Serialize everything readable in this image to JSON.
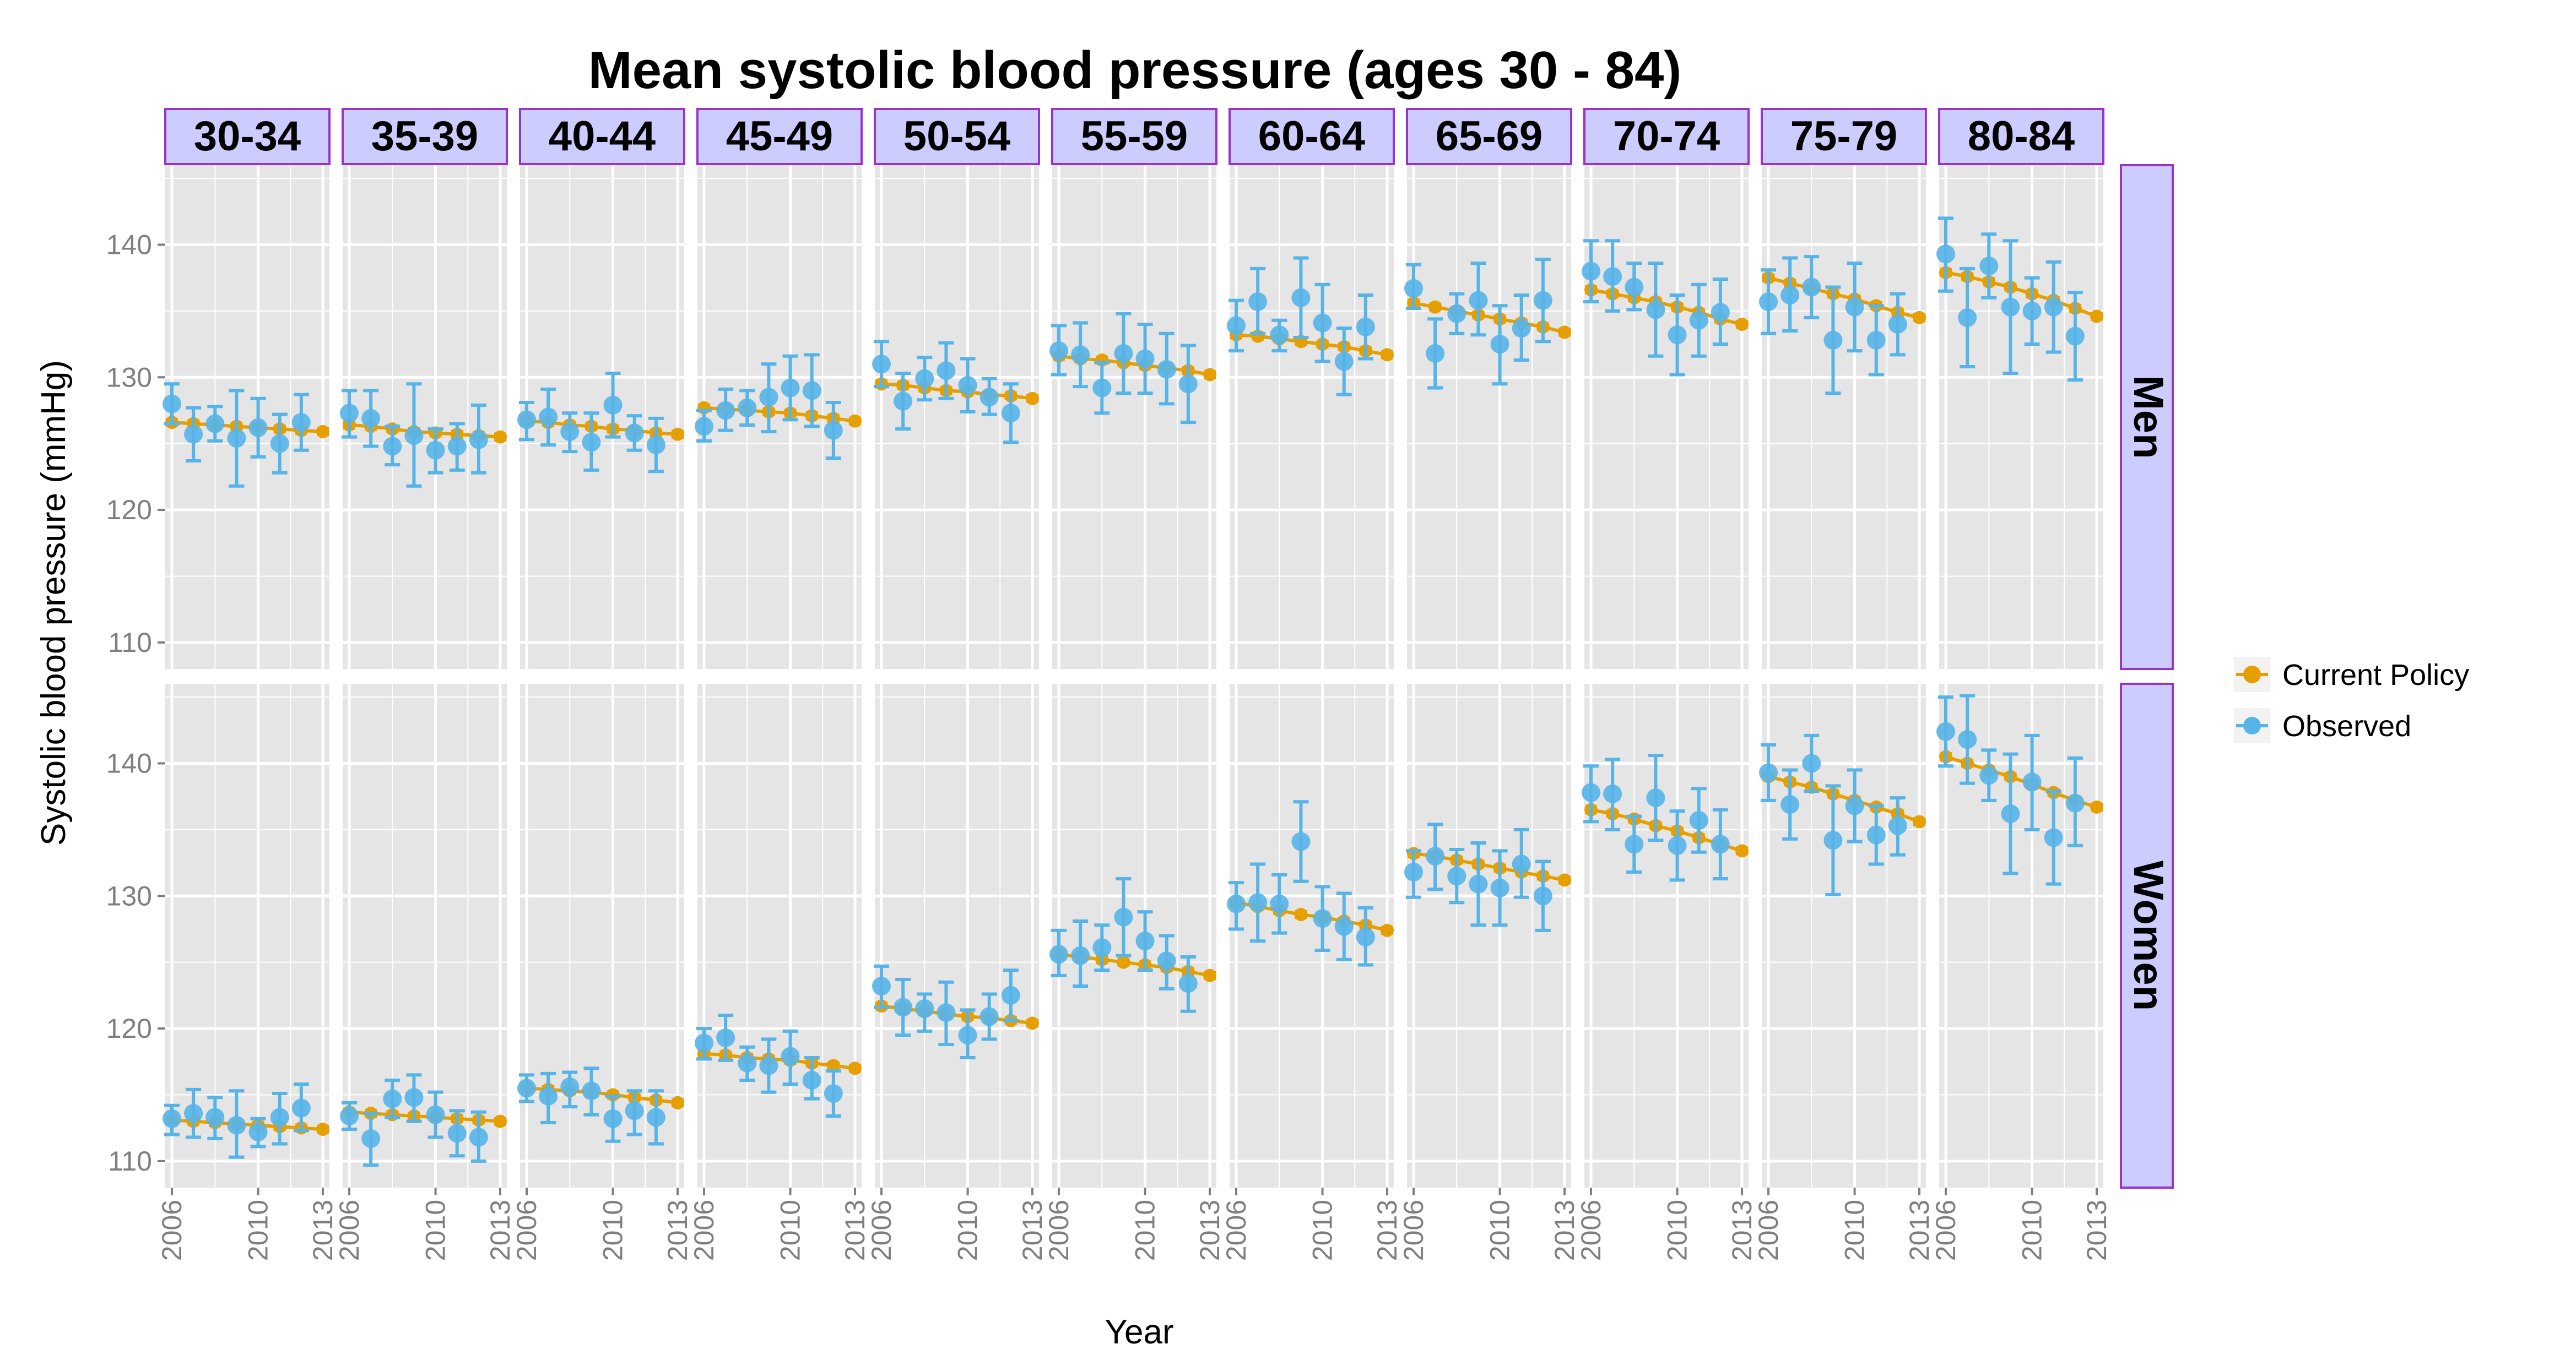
{
  "colors": {
    "policy": "#E69F00",
    "observed": "#56B4E9",
    "panel_bg": "#E5E5E5",
    "grid": "#FFFFFF",
    "strip_fill": "#CCCCFF",
    "strip_border": "#9933CC"
  },
  "chart_data": {
    "type": "scatter",
    "title": "Mean systolic blood pressure (ages 30 - 84)",
    "xlabel": "Year",
    "ylabel": "Systolic blood pressure (mmHg)",
    "xlim": [
      2006,
      2013
    ],
    "ylim": [
      108,
      146
    ],
    "x_ticks": [
      2006,
      2010,
      2013
    ],
    "x_tick_labels": [
      "2006",
      "2010",
      "2013"
    ],
    "y_ticks": [
      110,
      120,
      130,
      140
    ],
    "y_tick_labels": [
      "110",
      "120",
      "130",
      "140"
    ],
    "grid": true,
    "legend_position": "right",
    "legend": [
      {
        "name": "Current Policy",
        "color_key": "policy"
      },
      {
        "name": "Observed",
        "color_key": "observed"
      }
    ],
    "age_groups": [
      "30-34",
      "35-39",
      "40-44",
      "45-49",
      "50-54",
      "55-59",
      "60-64",
      "65-69",
      "70-74",
      "75-79",
      "80-84"
    ],
    "sexes": [
      "Men",
      "Women"
    ],
    "years": [
      2006,
      2007,
      2008,
      2009,
      2010,
      2011,
      2012,
      2013
    ],
    "obs_years": [
      2006,
      2007,
      2008,
      2009,
      2010,
      2011,
      2012,
      2013
    ],
    "policy": {
      "Men": [
        [
          126.6,
          126.5,
          126.4,
          126.3,
          126.2,
          126.1,
          126.0,
          125.9
        ],
        [
          126.4,
          126.3,
          126.1,
          125.9,
          125.8,
          125.7,
          125.6,
          125.5
        ],
        [
          126.7,
          126.6,
          126.4,
          126.3,
          126.1,
          126.0,
          125.8,
          125.7
        ],
        [
          127.7,
          127.6,
          127.5,
          127.4,
          127.3,
          127.1,
          126.9,
          126.7
        ],
        [
          129.5,
          129.4,
          129.2,
          129.0,
          128.9,
          128.7,
          128.6,
          128.4
        ],
        [
          131.6,
          131.4,
          131.3,
          131.1,
          130.9,
          130.7,
          130.5,
          130.2
        ],
        [
          133.2,
          133.1,
          132.9,
          132.7,
          132.5,
          132.3,
          132.0,
          131.7
        ],
        [
          135.6,
          135.3,
          135.0,
          134.7,
          134.4,
          134.1,
          133.8,
          133.4
        ],
        [
          136.6,
          136.3,
          136.0,
          135.7,
          135.3,
          134.9,
          134.4,
          134.0
        ],
        [
          137.5,
          137.1,
          136.7,
          136.3,
          135.9,
          135.4,
          134.9,
          134.5
        ],
        [
          137.9,
          137.6,
          137.2,
          136.8,
          136.3,
          135.8,
          135.2,
          134.6
        ]
      ],
      "Women": [
        [
          113.1,
          113.0,
          112.9,
          112.8,
          112.7,
          112.6,
          112.5,
          112.4
        ],
        [
          113.7,
          113.6,
          113.5,
          113.4,
          113.3,
          113.2,
          113.1,
          113.0
        ],
        [
          115.5,
          115.4,
          115.3,
          115.2,
          115.0,
          114.8,
          114.6,
          114.4
        ],
        [
          118.1,
          118.0,
          117.8,
          117.7,
          117.6,
          117.4,
          117.2,
          117.0
        ],
        [
          121.7,
          121.5,
          121.3,
          121.1,
          120.9,
          120.8,
          120.6,
          120.4
        ],
        [
          125.6,
          125.4,
          125.2,
          125.0,
          124.8,
          124.6,
          124.3,
          124.0
        ],
        [
          129.5,
          129.2,
          128.9,
          128.6,
          128.4,
          128.1,
          127.8,
          127.4
        ],
        [
          133.2,
          133.0,
          132.7,
          132.4,
          132.1,
          131.8,
          131.5,
          131.2
        ],
        [
          136.5,
          136.2,
          135.8,
          135.3,
          134.9,
          134.4,
          133.9,
          133.4
        ],
        [
          139.0,
          138.6,
          138.2,
          137.7,
          137.2,
          136.7,
          136.2,
          135.6
        ],
        [
          140.5,
          140.0,
          139.5,
          139.0,
          138.4,
          137.8,
          137.2,
          136.7
        ]
      ]
    },
    "observed": {
      "Men": [
        [
          [
            128.0,
            126.5,
            129.5
          ],
          [
            125.7,
            123.7,
            127.7
          ],
          [
            126.5,
            125.2,
            127.8
          ],
          [
            125.4,
            121.8,
            129.0
          ],
          [
            126.2,
            124.0,
            128.4
          ],
          [
            125.0,
            122.8,
            127.2
          ],
          [
            126.6,
            124.5,
            128.7
          ],
          [
            null,
            null,
            null
          ]
        ],
        [
          [
            127.3,
            125.5,
            129.0
          ],
          [
            126.9,
            124.8,
            129.0
          ],
          [
            124.8,
            123.4,
            126.3
          ],
          [
            125.6,
            121.8,
            129.5
          ],
          [
            124.5,
            122.8,
            126.1
          ],
          [
            124.8,
            123.0,
            126.5
          ],
          [
            125.3,
            122.8,
            127.9
          ],
          [
            null,
            null,
            null
          ]
        ],
        [
          [
            126.8,
            125.3,
            128.1
          ],
          [
            127.0,
            124.9,
            129.1
          ],
          [
            125.9,
            124.4,
            127.3
          ],
          [
            125.1,
            123.0,
            127.3
          ],
          [
            127.9,
            125.5,
            130.3
          ],
          [
            125.8,
            124.5,
            127.1
          ],
          [
            124.9,
            122.9,
            126.9
          ],
          [
            null,
            null,
            null
          ]
        ],
        [
          [
            126.3,
            125.2,
            127.5
          ],
          [
            127.5,
            126.0,
            129.1
          ],
          [
            127.7,
            126.4,
            129.0
          ],
          [
            128.5,
            125.9,
            131.0
          ],
          [
            129.2,
            126.8,
            131.6
          ],
          [
            129.0,
            126.3,
            131.7
          ],
          [
            126.0,
            123.9,
            128.1
          ],
          [
            null,
            null,
            null
          ]
        ],
        [
          [
            131.0,
            129.3,
            132.7
          ],
          [
            128.2,
            126.1,
            130.3
          ],
          [
            129.9,
            128.3,
            131.5
          ],
          [
            130.5,
            128.4,
            132.6
          ],
          [
            129.4,
            127.4,
            131.4
          ],
          [
            128.5,
            127.2,
            129.9
          ],
          [
            127.3,
            125.1,
            129.5
          ],
          [
            null,
            null,
            null
          ]
        ],
        [
          [
            132.0,
            130.2,
            133.9
          ],
          [
            131.7,
            129.3,
            134.1
          ],
          [
            129.2,
            127.3,
            131.1
          ],
          [
            131.8,
            128.8,
            134.8
          ],
          [
            131.4,
            128.8,
            134.0
          ],
          [
            130.6,
            128.0,
            133.3
          ],
          [
            129.5,
            126.6,
            132.4
          ],
          [
            null,
            null,
            null
          ]
        ],
        [
          [
            133.9,
            132.0,
            135.8
          ],
          [
            135.7,
            133.3,
            138.2
          ],
          [
            133.2,
            132.0,
            134.3
          ],
          [
            136.0,
            133.0,
            139.0
          ],
          [
            134.1,
            131.2,
            137.0
          ],
          [
            131.2,
            128.7,
            133.7
          ],
          [
            133.8,
            131.4,
            136.2
          ],
          [
            null,
            null,
            null
          ]
        ],
        [
          [
            136.7,
            135.2,
            138.5
          ],
          [
            131.8,
            129.2,
            134.4
          ],
          [
            134.8,
            133.3,
            136.3
          ],
          [
            135.8,
            133.2,
            138.6
          ],
          [
            132.5,
            129.5,
            135.4
          ],
          [
            133.7,
            131.3,
            136.2
          ],
          [
            135.8,
            132.7,
            138.9
          ],
          [
            null,
            null,
            null
          ]
        ],
        [
          [
            138.0,
            135.7,
            140.3
          ],
          [
            137.6,
            135.0,
            140.3
          ],
          [
            136.8,
            135.1,
            138.6
          ],
          [
            135.1,
            131.6,
            138.6
          ],
          [
            133.2,
            130.2,
            136.2
          ],
          [
            134.3,
            131.6,
            137.0
          ],
          [
            134.9,
            132.5,
            137.4
          ],
          [
            null,
            null,
            null
          ]
        ],
        [
          [
            135.7,
            133.3,
            138.1
          ],
          [
            136.2,
            133.5,
            139.0
          ],
          [
            136.8,
            134.5,
            139.1
          ],
          [
            132.8,
            128.8,
            136.8
          ],
          [
            135.3,
            132.0,
            138.6
          ],
          [
            132.8,
            130.2,
            135.4
          ],
          [
            134.0,
            131.7,
            136.3
          ],
          [
            null,
            null,
            null
          ]
        ],
        [
          [
            139.3,
            136.5,
            142.0
          ],
          [
            134.5,
            130.8,
            138.2
          ],
          [
            138.4,
            136.0,
            140.8
          ],
          [
            135.3,
            130.3,
            140.3
          ],
          [
            135.0,
            132.5,
            137.5
          ],
          [
            135.3,
            131.9,
            138.7
          ],
          [
            133.1,
            129.8,
            136.4
          ],
          [
            null,
            null,
            null
          ]
        ]
      ],
      "Women": [
        [
          [
            113.2,
            112.0,
            114.2
          ],
          [
            113.6,
            111.8,
            115.4
          ],
          [
            113.3,
            111.7,
            114.8
          ],
          [
            112.7,
            110.3,
            115.3
          ],
          [
            112.2,
            111.1,
            113.2
          ],
          [
            113.3,
            111.3,
            115.1
          ],
          [
            114.0,
            112.3,
            115.8
          ],
          [
            null,
            null,
            null
          ]
        ],
        [
          [
            113.4,
            112.4,
            114.4
          ],
          [
            111.7,
            109.7,
            113.6
          ],
          [
            114.7,
            113.3,
            116.1
          ],
          [
            114.8,
            113.0,
            116.5
          ],
          [
            113.5,
            111.8,
            115.2
          ],
          [
            112.1,
            110.4,
            113.8
          ],
          [
            111.8,
            110.0,
            113.7
          ],
          [
            null,
            null,
            null
          ]
        ],
        [
          [
            115.5,
            114.5,
            116.5
          ],
          [
            114.9,
            112.9,
            116.6
          ],
          [
            115.6,
            114.1,
            116.7
          ],
          [
            115.3,
            113.5,
            117.0
          ],
          [
            113.2,
            111.5,
            114.9
          ],
          [
            113.8,
            112.0,
            115.3
          ],
          [
            113.3,
            111.3,
            115.3
          ],
          [
            null,
            null,
            null
          ]
        ],
        [
          [
            118.9,
            117.7,
            120.0
          ],
          [
            119.3,
            117.6,
            121.0
          ],
          [
            117.4,
            116.1,
            118.6
          ],
          [
            117.2,
            115.2,
            119.2
          ],
          [
            117.9,
            115.8,
            119.8
          ],
          [
            116.1,
            114.7,
            117.8
          ],
          [
            115.1,
            113.4,
            116.8
          ],
          [
            null,
            null,
            null
          ]
        ],
        [
          [
            123.2,
            121.6,
            124.7
          ],
          [
            121.6,
            119.5,
            123.7
          ],
          [
            121.5,
            119.8,
            122.6
          ],
          [
            121.2,
            118.8,
            123.5
          ],
          [
            119.5,
            117.8,
            121.4
          ],
          [
            120.9,
            119.2,
            122.6
          ],
          [
            122.5,
            120.6,
            124.4
          ],
          [
            null,
            null,
            null
          ]
        ],
        [
          [
            125.6,
            124.0,
            127.4
          ],
          [
            125.5,
            123.2,
            128.1
          ],
          [
            126.1,
            124.4,
            127.8
          ],
          [
            128.4,
            125.5,
            131.3
          ],
          [
            126.6,
            124.4,
            128.8
          ],
          [
            125.1,
            123.0,
            127.0
          ],
          [
            123.4,
            121.3,
            125.4
          ],
          [
            null,
            null,
            null
          ]
        ],
        [
          [
            129.4,
            127.5,
            131.0
          ],
          [
            129.5,
            126.6,
            132.4
          ],
          [
            129.4,
            127.2,
            131.6
          ],
          [
            134.1,
            131.1,
            137.1
          ],
          [
            128.3,
            125.9,
            130.7
          ],
          [
            127.7,
            125.2,
            130.2
          ],
          [
            126.9,
            124.8,
            129.1
          ],
          [
            null,
            null,
            null
          ]
        ],
        [
          [
            131.8,
            129.9,
            133.4
          ],
          [
            133.0,
            130.5,
            135.4
          ],
          [
            131.5,
            129.5,
            133.5
          ],
          [
            130.9,
            127.8,
            134.0
          ],
          [
            130.6,
            127.8,
            133.4
          ],
          [
            132.4,
            129.9,
            135.0
          ],
          [
            130.0,
            127.4,
            132.6
          ],
          [
            null,
            null,
            null
          ]
        ],
        [
          [
            137.8,
            135.6,
            139.8
          ],
          [
            137.7,
            135.0,
            140.3
          ],
          [
            133.9,
            131.8,
            136.0
          ],
          [
            137.4,
            134.2,
            140.6
          ],
          [
            133.8,
            131.2,
            136.4
          ],
          [
            135.7,
            133.3,
            138.1
          ],
          [
            133.9,
            131.3,
            136.5
          ],
          [
            null,
            null,
            null
          ]
        ],
        [
          [
            139.3,
            137.2,
            141.4
          ],
          [
            136.9,
            134.3,
            139.5
          ],
          [
            140.0,
            137.9,
            142.1
          ],
          [
            134.2,
            130.1,
            138.3
          ],
          [
            136.8,
            134.1,
            139.5
          ],
          [
            134.6,
            132.4,
            136.8
          ],
          [
            135.3,
            133.1,
            137.4
          ],
          [
            null,
            null,
            null
          ]
        ],
        [
          [
            142.4,
            139.8,
            145.0
          ],
          [
            141.8,
            138.5,
            145.1
          ],
          [
            139.1,
            137.2,
            141.0
          ],
          [
            136.2,
            131.7,
            140.7
          ],
          [
            138.6,
            135.0,
            142.1
          ],
          [
            134.4,
            130.9,
            137.9
          ],
          [
            137.0,
            133.8,
            140.4
          ],
          [
            null,
            null,
            null
          ]
        ]
      ]
    }
  }
}
